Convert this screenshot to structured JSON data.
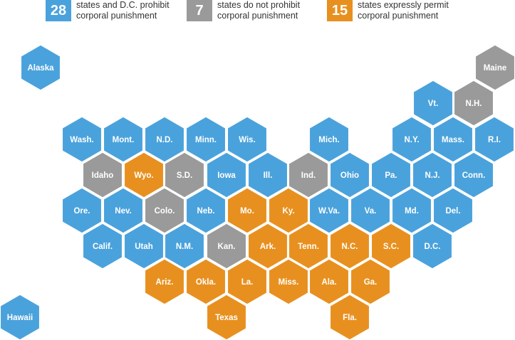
{
  "colors": {
    "prohibit": "#4aa2dc",
    "no_prohibition": "#9a9a9a",
    "permit": "#e8901f"
  },
  "legend": [
    {
      "category": "prohibit",
      "count": "28",
      "text": "states and D.C. prohibit\ncorporal punishment"
    },
    {
      "category": "no_prohibition",
      "count": "7",
      "text": "states do not prohibit\ncorporal punishment"
    },
    {
      "category": "permit",
      "count": "15",
      "text": "states expressly permit\ncorporal punishment"
    }
  ],
  "states": [
    {
      "label": "Alaska",
      "category": "prohibit"
    },
    {
      "label": "Maine",
      "category": "no_prohibition"
    },
    {
      "label": "Vt.",
      "category": "prohibit"
    },
    {
      "label": "N.H.",
      "category": "no_prohibition"
    },
    {
      "label": "Wash.",
      "category": "prohibit"
    },
    {
      "label": "Mont.",
      "category": "prohibit"
    },
    {
      "label": "N.D.",
      "category": "prohibit"
    },
    {
      "label": "Minn.",
      "category": "prohibit"
    },
    {
      "label": "Wis.",
      "category": "prohibit"
    },
    {
      "label": "Mich.",
      "category": "prohibit"
    },
    {
      "label": "N.Y.",
      "category": "prohibit"
    },
    {
      "label": "Mass.",
      "category": "prohibit"
    },
    {
      "label": "R.I.",
      "category": "prohibit"
    },
    {
      "label": "Idaho",
      "category": "no_prohibition"
    },
    {
      "label": "Wyo.",
      "category": "permit"
    },
    {
      "label": "S.D.",
      "category": "no_prohibition"
    },
    {
      "label": "Iowa",
      "category": "prohibit"
    },
    {
      "label": "Ill.",
      "category": "prohibit"
    },
    {
      "label": "Ind.",
      "category": "no_prohibition"
    },
    {
      "label": "Ohio",
      "category": "prohibit"
    },
    {
      "label": "Pa.",
      "category": "prohibit"
    },
    {
      "label": "N.J.",
      "category": "prohibit"
    },
    {
      "label": "Conn.",
      "category": "prohibit"
    },
    {
      "label": "Ore.",
      "category": "prohibit"
    },
    {
      "label": "Nev.",
      "category": "prohibit"
    },
    {
      "label": "Colo.",
      "category": "no_prohibition"
    },
    {
      "label": "Neb.",
      "category": "prohibit"
    },
    {
      "label": "Mo.",
      "category": "permit"
    },
    {
      "label": "Ky.",
      "category": "permit"
    },
    {
      "label": "W.Va.",
      "category": "prohibit"
    },
    {
      "label": "Va.",
      "category": "prohibit"
    },
    {
      "label": "Md.",
      "category": "prohibit"
    },
    {
      "label": "Del.",
      "category": "prohibit"
    },
    {
      "label": "Calif.",
      "category": "prohibit"
    },
    {
      "label": "Utah",
      "category": "prohibit"
    },
    {
      "label": "N.M.",
      "category": "prohibit"
    },
    {
      "label": "Kan.",
      "category": "no_prohibition"
    },
    {
      "label": "Ark.",
      "category": "permit"
    },
    {
      "label": "Tenn.",
      "category": "permit"
    },
    {
      "label": "N.C.",
      "category": "permit"
    },
    {
      "label": "S.C.",
      "category": "permit"
    },
    {
      "label": "D.C.",
      "category": "prohibit"
    },
    {
      "label": "Ariz.",
      "category": "permit"
    },
    {
      "label": "Okla.",
      "category": "permit"
    },
    {
      "label": "La.",
      "category": "permit"
    },
    {
      "label": "Miss.",
      "category": "permit"
    },
    {
      "label": "Ala.",
      "category": "permit"
    },
    {
      "label": "Ga.",
      "category": "permit"
    },
    {
      "label": "Hawaii",
      "category": "prohibit"
    },
    {
      "label": "Texas",
      "category": "permit"
    },
    {
      "label": "Fla.",
      "category": "permit"
    }
  ]
}
